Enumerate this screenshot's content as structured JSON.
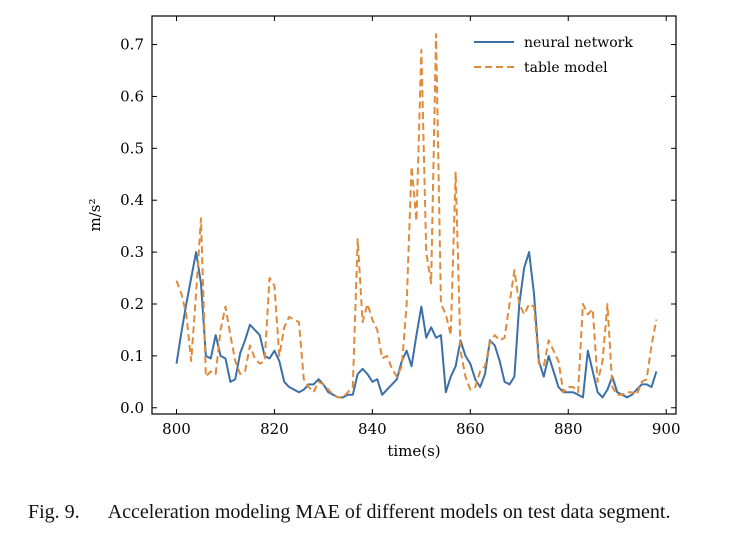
{
  "chart_data": {
    "type": "line",
    "title": "",
    "xlabel": "time(s)",
    "ylabel": "m/s²",
    "xlim": [
      795,
      902
    ],
    "ylim": [
      -0.012,
      0.755
    ],
    "xticks": [
      800,
      820,
      840,
      860,
      880,
      900
    ],
    "yticks": [
      0.0,
      0.1,
      0.2,
      0.3,
      0.4,
      0.5,
      0.6,
      0.7
    ],
    "yticklabels": [
      "0.0",
      "0.1",
      "0.2",
      "0.3",
      "0.4",
      "0.5",
      "0.6",
      "0.7"
    ],
    "grid": false,
    "legend_position": "top-right",
    "series": [
      {
        "name": "neural network",
        "color": "#3b6fa8",
        "style": "solid",
        "x": [
          800,
          801,
          802,
          803,
          804,
          805,
          806,
          807,
          808,
          809,
          810,
          811,
          812,
          813,
          814,
          815,
          816,
          817,
          818,
          819,
          820,
          821,
          822,
          823,
          824,
          825,
          826,
          827,
          828,
          829,
          830,
          831,
          832,
          833,
          834,
          835,
          836,
          837,
          838,
          839,
          840,
          841,
          842,
          843,
          844,
          845,
          846,
          847,
          848,
          849,
          850,
          851,
          852,
          853,
          854,
          855,
          856,
          857,
          858,
          859,
          860,
          861,
          862,
          863,
          864,
          865,
          866,
          867,
          868,
          869,
          870,
          871,
          872,
          873,
          874,
          875,
          876,
          877,
          878,
          879,
          880,
          881,
          882,
          883,
          884,
          885,
          886,
          887,
          888,
          889,
          890,
          891,
          892,
          893,
          894,
          895,
          896,
          897,
          898
        ],
        "values": [
          0.085,
          0.145,
          0.2,
          0.25,
          0.3,
          0.24,
          0.1,
          0.095,
          0.14,
          0.1,
          0.095,
          0.05,
          0.055,
          0.105,
          0.13,
          0.16,
          0.15,
          0.14,
          0.1,
          0.095,
          0.11,
          0.09,
          0.05,
          0.04,
          0.035,
          0.03,
          0.035,
          0.045,
          0.045,
          0.055,
          0.045,
          0.03,
          0.025,
          0.02,
          0.02,
          0.025,
          0.025,
          0.065,
          0.075,
          0.065,
          0.05,
          0.055,
          0.025,
          0.035,
          0.045,
          0.055,
          0.09,
          0.11,
          0.08,
          0.14,
          0.195,
          0.135,
          0.155,
          0.135,
          0.14,
          0.03,
          0.06,
          0.08,
          0.13,
          0.1,
          0.085,
          0.055,
          0.04,
          0.065,
          0.13,
          0.12,
          0.09,
          0.05,
          0.045,
          0.06,
          0.2,
          0.27,
          0.3,
          0.22,
          0.09,
          0.06,
          0.1,
          0.07,
          0.04,
          0.03,
          0.03,
          0.03,
          0.025,
          0.02,
          0.11,
          0.07,
          0.03,
          0.02,
          0.035,
          0.06,
          0.03,
          0.025,
          0.02,
          0.025,
          0.035,
          0.045,
          0.045,
          0.04,
          0.07
        ]
      },
      {
        "name": "table model",
        "color": "#e08a3c",
        "style": "dashed",
        "x": [
          800,
          801,
          802,
          803,
          804,
          805,
          806,
          807,
          808,
          809,
          810,
          811,
          812,
          813,
          814,
          815,
          816,
          817,
          818,
          819,
          820,
          821,
          822,
          823,
          824,
          825,
          826,
          827,
          828,
          829,
          830,
          831,
          832,
          833,
          834,
          835,
          836,
          837,
          838,
          839,
          840,
          841,
          842,
          843,
          844,
          845,
          846,
          847,
          848,
          849,
          850,
          851,
          852,
          853,
          854,
          855,
          856,
          857,
          858,
          859,
          860,
          861,
          862,
          863,
          864,
          865,
          866,
          867,
          868,
          869,
          870,
          871,
          872,
          873,
          874,
          875,
          876,
          877,
          878,
          879,
          880,
          881,
          882,
          883,
          884,
          885,
          886,
          887,
          888,
          889,
          890,
          891,
          892,
          893,
          894,
          895,
          896,
          897,
          898
        ],
        "values": [
          0.245,
          0.22,
          0.18,
          0.09,
          0.22,
          0.365,
          0.06,
          0.07,
          0.065,
          0.15,
          0.195,
          0.14,
          0.09,
          0.065,
          0.07,
          0.12,
          0.095,
          0.085,
          0.09,
          0.25,
          0.235,
          0.1,
          0.155,
          0.175,
          0.17,
          0.165,
          0.055,
          0.04,
          0.03,
          0.05,
          0.045,
          0.035,
          0.025,
          0.02,
          0.02,
          0.03,
          0.04,
          0.325,
          0.165,
          0.2,
          0.17,
          0.15,
          0.095,
          0.1,
          0.075,
          0.06,
          0.08,
          0.2,
          0.465,
          0.36,
          0.69,
          0.3,
          0.24,
          0.72,
          0.2,
          0.18,
          0.14,
          0.455,
          0.11,
          0.06,
          0.035,
          0.04,
          0.07,
          0.08,
          0.125,
          0.14,
          0.13,
          0.135,
          0.2,
          0.265,
          0.2,
          0.18,
          0.2,
          0.195,
          0.085,
          0.08,
          0.13,
          0.11,
          0.09,
          0.03,
          0.04,
          0.04,
          0.03,
          0.2,
          0.18,
          0.19,
          0.05,
          0.09,
          0.2,
          0.04,
          0.025,
          0.025,
          0.03,
          0.03,
          0.025,
          0.05,
          0.055,
          0.12,
          0.17
        ]
      }
    ]
  },
  "caption": {
    "label": "Fig. 9.",
    "text": "Acceleration modeling MAE of different models on test data segment."
  }
}
